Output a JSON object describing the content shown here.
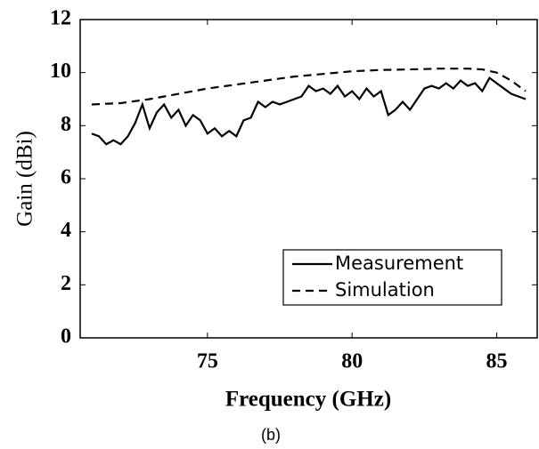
{
  "chart_data": {
    "type": "line",
    "caption": "(b)",
    "xlabel": "Frequency (GHz)",
    "ylabel": "Gain (dBi)",
    "xlim": [
      70.6,
      86.4
    ],
    "ylim": [
      0,
      12
    ],
    "xticks": [
      75,
      80,
      85
    ],
    "yticks": [
      0,
      2,
      4,
      6,
      8,
      10,
      12
    ],
    "legend": "lower right",
    "series": [
      {
        "name": "Measurement",
        "color": "#000000",
        "dash": "solid",
        "x": [
          71.0,
          71.25,
          71.5,
          71.75,
          72.0,
          72.25,
          72.5,
          72.75,
          73.0,
          73.25,
          73.5,
          73.75,
          74.0,
          74.25,
          74.5,
          74.75,
          75.0,
          75.25,
          75.5,
          75.75,
          76.0,
          76.25,
          76.5,
          76.75,
          77.0,
          77.25,
          77.5,
          77.75,
          78.0,
          78.25,
          78.5,
          78.75,
          79.0,
          79.25,
          79.5,
          79.75,
          80.0,
          80.25,
          80.5,
          80.75,
          81.0,
          81.25,
          81.5,
          81.75,
          82.0,
          82.25,
          82.5,
          82.75,
          83.0,
          83.25,
          83.5,
          83.75,
          84.0,
          84.25,
          84.5,
          84.75,
          85.0,
          85.25,
          85.5,
          85.75,
          86.0
        ],
        "values": [
          7.7,
          7.6,
          7.3,
          7.45,
          7.3,
          7.6,
          8.1,
          8.8,
          7.9,
          8.5,
          8.8,
          8.3,
          8.6,
          8.0,
          8.4,
          8.2,
          7.7,
          7.9,
          7.6,
          7.8,
          7.6,
          8.2,
          8.3,
          8.9,
          8.7,
          8.9,
          8.8,
          8.9,
          9.0,
          9.1,
          9.5,
          9.3,
          9.4,
          9.2,
          9.5,
          9.1,
          9.3,
          9.0,
          9.4,
          9.1,
          9.3,
          8.4,
          8.6,
          8.9,
          8.6,
          9.0,
          9.4,
          9.5,
          9.4,
          9.6,
          9.4,
          9.7,
          9.5,
          9.6,
          9.3,
          9.8,
          9.6,
          9.4,
          9.2,
          9.1,
          9.0
        ]
      },
      {
        "name": "Simulation",
        "color": "#000000",
        "dash": "dashed",
        "x": [
          71.0,
          72.0,
          73.0,
          74.0,
          75.0,
          76.0,
          77.0,
          78.0,
          79.0,
          80.0,
          81.0,
          82.0,
          83.0,
          84.0,
          84.5,
          85.0,
          85.5,
          86.0
        ],
        "values": [
          8.8,
          8.85,
          9.0,
          9.2,
          9.4,
          9.55,
          9.7,
          9.85,
          9.95,
          10.05,
          10.1,
          10.12,
          10.15,
          10.15,
          10.12,
          10.0,
          9.7,
          9.3
        ]
      }
    ]
  }
}
